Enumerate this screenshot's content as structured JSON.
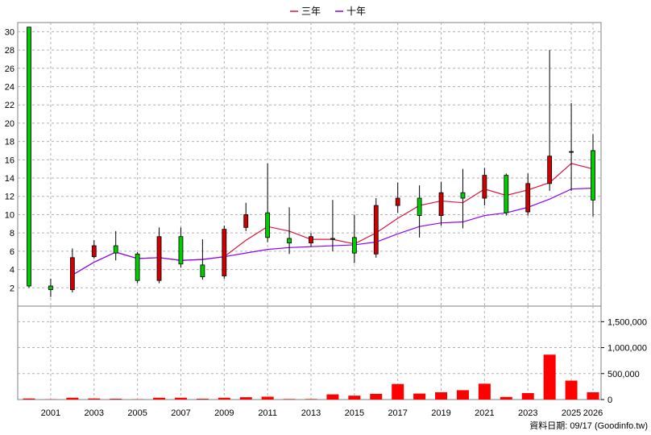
{
  "chart_data": [
    {
      "type": "candlestick",
      "legend": [
        {
          "name": "三年",
          "color": "#dc143c"
        },
        {
          "name": "十年",
          "color": "#8b00ff"
        }
      ],
      "legend_position": "top-center",
      "ylim": [
        0,
        31
      ],
      "y_ticks": [
        2,
        4,
        6,
        8,
        10,
        12,
        14,
        16,
        18,
        20,
        22,
        24,
        26,
        28,
        30
      ],
      "x_labels": [
        "2001",
        "2003",
        "2005",
        "2007",
        "2009",
        "2011",
        "2013",
        "2015",
        "2017",
        "2019",
        "2021",
        "2023",
        "2025",
        "2026"
      ],
      "x_positions": [
        2000.2,
        2002.2,
        2004.2,
        2006.2,
        2008.2,
        2010.2,
        2012.2,
        2014.2,
        2016.2,
        2018.2,
        2020.2,
        2022.2,
        24.2,
        24.9
      ],
      "up_color": "#d00000",
      "down_color": "#00cc00",
      "candles": [
        {
          "year": 2000,
          "open": 30.5,
          "close": 2.2,
          "high": 30.5,
          "low": 2.0
        },
        {
          "year": 2001,
          "open": 2.2,
          "close": 1.8,
          "high": 3.0,
          "low": 1.0
        },
        {
          "year": 2002,
          "open": 1.8,
          "close": 5.3,
          "high": 6.3,
          "low": 1.5
        },
        {
          "year": 2003,
          "open": 5.4,
          "close": 6.6,
          "high": 7.2,
          "low": 5.2
        },
        {
          "year": 2004,
          "open": 6.6,
          "close": 5.8,
          "high": 8.2,
          "low": 5.0
        },
        {
          "year": 2005,
          "open": 5.7,
          "close": 2.8,
          "high": 5.9,
          "low": 2.5
        },
        {
          "year": 2006,
          "open": 2.8,
          "close": 7.6,
          "high": 8.6,
          "low": 2.5
        },
        {
          "year": 2007,
          "open": 7.6,
          "close": 4.6,
          "high": 8.6,
          "low": 4.2
        },
        {
          "year": 2008,
          "open": 4.5,
          "close": 3.2,
          "high": 7.3,
          "low": 2.9
        },
        {
          "year": 2009,
          "open": 3.3,
          "close": 8.4,
          "high": 8.8,
          "low": 3.0
        },
        {
          "year": 2010,
          "open": 8.6,
          "close": 10.0,
          "high": 11.3,
          "low": 8.2
        },
        {
          "year": 2011,
          "open": 10.2,
          "close": 7.5,
          "high": 15.6,
          "low": 7.0
        },
        {
          "year": 2012,
          "open": 7.4,
          "close": 6.9,
          "high": 10.8,
          "low": 5.7
        },
        {
          "year": 2013,
          "open": 6.9,
          "close": 7.6,
          "high": 8.0,
          "low": 6.5
        },
        {
          "year": 2014,
          "open": 7.4,
          "close": 7.3,
          "high": 11.6,
          "low": 6.0
        },
        {
          "year": 2015,
          "open": 7.5,
          "close": 5.8,
          "high": 10.0,
          "low": 4.7
        },
        {
          "year": 2016,
          "open": 5.7,
          "close": 11.0,
          "high": 11.8,
          "low": 5.3
        },
        {
          "year": 2017,
          "open": 11.0,
          "close": 11.8,
          "high": 13.5,
          "low": 10.2
        },
        {
          "year": 2018,
          "open": 11.8,
          "close": 9.9,
          "high": 13.2,
          "low": 7.5
        },
        {
          "year": 2019,
          "open": 9.9,
          "close": 12.4,
          "high": 13.6,
          "low": 8.8
        },
        {
          "year": 2020,
          "open": 12.4,
          "close": 11.8,
          "high": 15.0,
          "low": 8.5
        },
        {
          "year": 2021,
          "open": 11.8,
          "close": 14.3,
          "high": 15.1,
          "low": 11.0
        },
        {
          "year": 2022,
          "open": 14.3,
          "close": 10.2,
          "high": 14.5,
          "low": 9.9
        },
        {
          "year": 2023,
          "open": 10.3,
          "close": 13.4,
          "high": 14.5,
          "low": 9.9
        },
        {
          "year": 2024,
          "open": 13.4,
          "close": 16.4,
          "high": 28.0,
          "low": 12.6
        },
        {
          "year": 2025,
          "open": 16.9,
          "close": 16.9,
          "high": 22.2,
          "low": 12.6
        },
        {
          "year": 2026,
          "open": 17.0,
          "close": 11.6,
          "high": 18.8,
          "low": 9.8
        }
      ],
      "series": [
        {
          "name": "三年",
          "x": [
            2002,
            2003,
            2004,
            2005,
            2006,
            2007,
            2008,
            2009,
            2010,
            2011,
            2012,
            2013,
            2014,
            2015,
            2016,
            2017,
            2018,
            2019,
            2020,
            2021,
            2022,
            2023,
            2024,
            2025,
            2026
          ],
          "values": [
            3.4,
            4.8,
            5.9,
            5.2,
            5.3,
            5.0,
            5.1,
            5.4,
            7.2,
            8.7,
            8.2,
            7.3,
            7.3,
            6.8,
            8.0,
            9.6,
            11.0,
            11.5,
            11.3,
            12.8,
            12.1,
            12.7,
            13.5,
            15.6,
            15.0
          ]
        },
        {
          "name": "十年",
          "x": [
            2002,
            2003,
            2004,
            2005,
            2006,
            2007,
            2008,
            2009,
            2010,
            2011,
            2012,
            2013,
            2014,
            2015,
            2016,
            2017,
            2018,
            2019,
            2020,
            2021,
            2022,
            2023,
            2024,
            2025,
            2026
          ],
          "values": [
            3.4,
            4.8,
            5.9,
            5.2,
            5.3,
            5.0,
            5.1,
            5.4,
            5.8,
            6.2,
            6.4,
            6.5,
            6.6,
            6.7,
            7.0,
            7.9,
            8.7,
            9.1,
            9.2,
            9.9,
            10.2,
            10.8,
            11.7,
            12.8,
            12.9
          ]
        }
      ]
    },
    {
      "type": "bar",
      "color": "#ff0000",
      "ylim": [
        0,
        1800000
      ],
      "y_ticks": [
        0,
        500000,
        1000000,
        1500000
      ],
      "y_tick_labels": [
        "0",
        "500,000",
        "1,000,000",
        "1,500,000"
      ],
      "categories": [
        2000,
        2001,
        2002,
        2003,
        2004,
        2005,
        2006,
        2007,
        2008,
        2009,
        2010,
        2011,
        2012,
        2013,
        2014,
        2015,
        2016,
        2017,
        2018,
        2019,
        2020,
        2021,
        2022,
        2023,
        2024,
        2025,
        2026
      ],
      "values": [
        20000,
        5000,
        35000,
        20000,
        15000,
        5000,
        35000,
        35000,
        15000,
        35000,
        45000,
        55000,
        10000,
        10000,
        100000,
        75000,
        110000,
        300000,
        115000,
        140000,
        180000,
        305000,
        50000,
        125000,
        865000,
        365000,
        140000
      ]
    }
  ],
  "footer": {
    "date_note": "資料日期: 09/17  (Goodinfo.tw)"
  }
}
